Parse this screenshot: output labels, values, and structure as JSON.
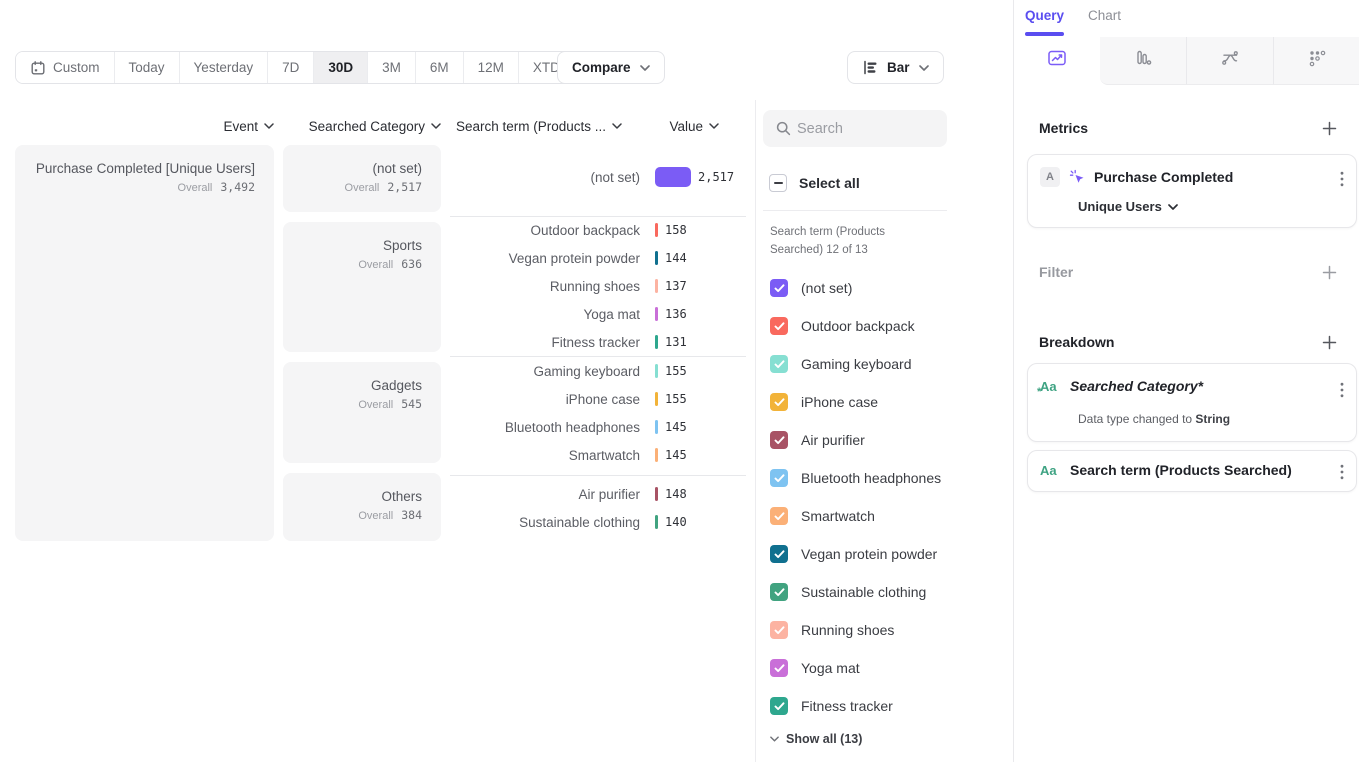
{
  "toolbar": {
    "date_ranges": [
      "Custom",
      "Today",
      "Yesterday",
      "7D",
      "30D",
      "3M",
      "6M",
      "12M",
      "XTD"
    ],
    "selected_range": "30D",
    "compare": "Compare",
    "chart_type": "Bar"
  },
  "table": {
    "headers": {
      "event": "Event",
      "category": "Searched Category",
      "term": "Search term (Products ...",
      "value": "Value"
    },
    "overall_label": "Overall",
    "event": {
      "label": "Purchase Completed [Unique Users]",
      "overall": "3,492"
    },
    "groups": [
      {
        "category": "(not set)",
        "overall": "2,517",
        "rows": [
          {
            "term": "(not set)",
            "value": "2,517",
            "color": "#7b5cf5"
          }
        ]
      },
      {
        "category": "Sports",
        "overall": "636",
        "rows": [
          {
            "term": "Outdoor backpack",
            "value": "158",
            "color": "#f9695e"
          },
          {
            "term": "Vegan protein powder",
            "value": "144",
            "color": "#10708f"
          },
          {
            "term": "Running shoes",
            "value": "137",
            "color": "#fcb3a2"
          },
          {
            "term": "Yoga mat",
            "value": "136",
            "color": "#c96fd8"
          },
          {
            "term": "Fitness tracker",
            "value": "131",
            "color": "#2ea78e"
          }
        ]
      },
      {
        "category": "Gadgets",
        "overall": "545",
        "rows": [
          {
            "term": "Gaming keyboard",
            "value": "155",
            "color": "#86dfd2"
          },
          {
            "term": "iPhone case",
            "value": "155",
            "color": "#f2b339"
          },
          {
            "term": "Bluetooth headphones",
            "value": "145",
            "color": "#7ec3f1"
          },
          {
            "term": "Smartwatch",
            "value": "145",
            "color": "#fbb077"
          }
        ]
      },
      {
        "category": "Others",
        "overall": "384",
        "rows": [
          {
            "term": "Air purifier",
            "value": "148",
            "color": "#a85365"
          },
          {
            "term": "Sustainable clothing",
            "value": "140",
            "color": "#41a380"
          }
        ]
      }
    ]
  },
  "filter_panel": {
    "search_placeholder": "Search",
    "select_all": "Select all",
    "group_label": "Search term (Products Searched) 12 of 13",
    "items": [
      {
        "label": "(not set)",
        "color": "#7b5cf5",
        "checked": true
      },
      {
        "label": "Outdoor backpack",
        "color": "#f9695e",
        "checked": true
      },
      {
        "label": "Gaming keyboard",
        "color": "#86dfd2",
        "checked": true
      },
      {
        "label": "iPhone case",
        "color": "#f2b339",
        "checked": true
      },
      {
        "label": "Air purifier",
        "color": "#a85365",
        "checked": true
      },
      {
        "label": "Bluetooth headphones",
        "color": "#7ec3f1",
        "checked": true
      },
      {
        "label": "Smartwatch",
        "color": "#fbb077",
        "checked": true
      },
      {
        "label": "Vegan protein powder",
        "color": "#10708f",
        "checked": true
      },
      {
        "label": "Sustainable clothing",
        "color": "#41a380",
        "checked": true
      },
      {
        "label": "Running shoes",
        "color": "#fcb3a2",
        "checked": true
      },
      {
        "label": "Yoga mat",
        "color": "#c96fd8",
        "checked": true
      },
      {
        "label": "Fitness tracker",
        "color": "#2ea78e",
        "checked": true,
        "textured": true
      }
    ],
    "show_all": "Show all (13)"
  },
  "query_panel": {
    "tabs": {
      "query": "Query",
      "chart": "Chart"
    },
    "metrics_title": "Metrics",
    "metric_card": {
      "badge": "A",
      "event": "Purchase Completed",
      "measure": "Unique Users"
    },
    "filter_title": "Filter",
    "breakdown_title": "Breakdown",
    "breakdown_items": [
      {
        "icon": "Aa",
        "label": "Searched Category*",
        "note_prefix": "Data type changed to ",
        "note_bold": "String"
      },
      {
        "icon": "Aa",
        "label": "Search term (Products Searched)"
      }
    ]
  },
  "colors": {
    "accent": "#5a4df0",
    "bar_purple": "#7b5cf5"
  }
}
